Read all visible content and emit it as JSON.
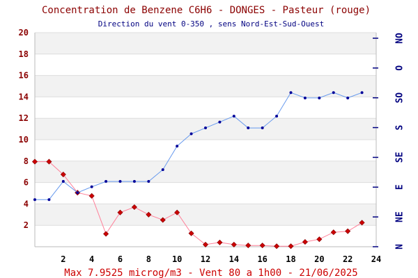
{
  "chart_data": {
    "type": "line",
    "title": "Concentration de Benzene C6H6  -   DONGES - Pasteur (rouge)",
    "subtitle": "Direction du vent 0-350 , sens Nord-Est-Sud-Ouest",
    "footer": "Max 7.9525 microg/m3 - Vent 80  a 1h00 - 21/06/2025",
    "x": [
      0,
      1,
      2,
      3,
      4,
      5,
      6,
      7,
      8,
      9,
      10,
      11,
      12,
      13,
      14,
      15,
      16,
      17,
      18,
      19,
      20,
      21,
      22,
      23
    ],
    "xlim": [
      0,
      24
    ],
    "ylim": [
      0,
      20
    ],
    "x_ticks": [
      "2",
      "4",
      "6",
      "8",
      "10",
      "12",
      "14",
      "16",
      "18",
      "20",
      "22",
      "24"
    ],
    "y_ticks": [
      "2",
      "4",
      "6",
      "8",
      "10",
      "12",
      "14",
      "16",
      "18",
      "20"
    ],
    "direction_ticks": [
      "N",
      "NE",
      "E",
      "SE",
      "S",
      "SO",
      "O",
      "NO"
    ],
    "grid": true,
    "series": [
      {
        "key": "benzene",
        "color": "#cc0000",
        "line_color": "#ff8099",
        "marker": "diamond",
        "values": [
          7.95,
          7.95,
          6.75,
          5.05,
          4.75,
          1.2,
          3.2,
          3.7,
          3.0,
          2.5,
          3.2,
          1.25,
          0.2,
          0.4,
          0.2,
          0.12,
          0.12,
          0.05,
          0.05,
          0.45,
          0.7,
          1.35,
          1.45,
          2.25
        ]
      },
      {
        "key": "wind",
        "color": "#000099",
        "line_color": "#6699ee",
        "marker": "dot",
        "values": [
          4.4,
          4.4,
          6.1,
          5.05,
          5.6,
          6.1,
          6.1,
          6.1,
          6.1,
          7.2,
          9.4,
          10.55,
          11.1,
          11.65,
          12.2,
          11.1,
          11.1,
          12.2,
          14.4,
          13.9,
          13.9,
          14.4,
          13.9,
          14.4
        ]
      }
    ]
  }
}
